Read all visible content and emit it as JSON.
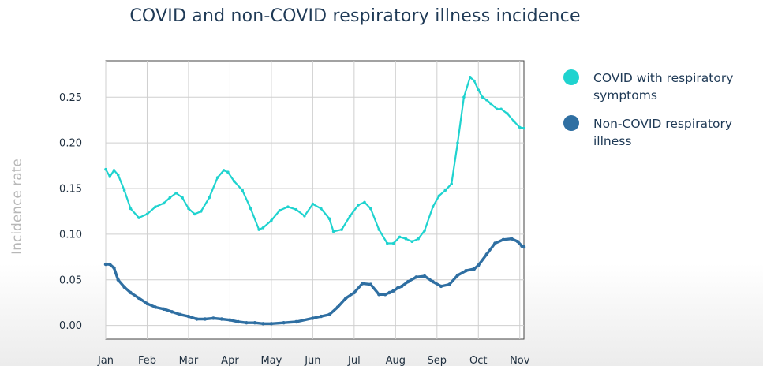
{
  "chart_data": {
    "type": "line",
    "title": "COVID and non-COVID respiratory illness incidence",
    "xlabel": "",
    "ylabel": "Incidence rate",
    "x_tick_labels": [
      "Jan",
      "Feb",
      "Mar",
      "Apr",
      "May",
      "Jun",
      "Jul",
      "Aug",
      "Sep",
      "Oct",
      "Nov"
    ],
    "y_tick_labels": [
      "0.00",
      "0.05",
      "0.10",
      "0.15",
      "0.20",
      "0.25"
    ],
    "y_ticks": [
      0,
      0.05,
      0.1,
      0.15,
      0.2,
      0.25
    ],
    "ylim": [
      -0.015,
      0.29
    ],
    "xlim": [
      0,
      10.1
    ],
    "grid": true,
    "legend_position": "right",
    "series": [
      {
        "name": "COVID with respiratory symptoms",
        "color": "#1fd3cf",
        "x": [
          0,
          0.1,
          0.2,
          0.3,
          0.45,
          0.6,
          0.8,
          1.0,
          1.2,
          1.4,
          1.55,
          1.7,
          1.85,
          2.0,
          2.15,
          2.3,
          2.5,
          2.7,
          2.85,
          2.95,
          3.1,
          3.3,
          3.5,
          3.7,
          3.8,
          4.0,
          4.2,
          4.4,
          4.6,
          4.8,
          5.0,
          5.2,
          5.4,
          5.5,
          5.7,
          5.9,
          6.1,
          6.25,
          6.4,
          6.6,
          6.8,
          6.95,
          7.1,
          7.25,
          7.4,
          7.55,
          7.7,
          7.9,
          8.05,
          8.2,
          8.35,
          8.5,
          8.65,
          8.8,
          8.9,
          9.0,
          9.1,
          9.2,
          9.3,
          9.45,
          9.55,
          9.7,
          9.85,
          10.0,
          10.1
        ],
        "values": [
          0.171,
          0.163,
          0.17,
          0.165,
          0.148,
          0.128,
          0.118,
          0.122,
          0.13,
          0.134,
          0.14,
          0.145,
          0.14,
          0.128,
          0.122,
          0.125,
          0.14,
          0.162,
          0.17,
          0.168,
          0.158,
          0.148,
          0.128,
          0.105,
          0.107,
          0.115,
          0.126,
          0.13,
          0.127,
          0.12,
          0.133,
          0.128,
          0.117,
          0.103,
          0.105,
          0.12,
          0.132,
          0.135,
          0.128,
          0.105,
          0.09,
          0.09,
          0.097,
          0.095,
          0.092,
          0.095,
          0.104,
          0.13,
          0.142,
          0.148,
          0.155,
          0.2,
          0.25,
          0.272,
          0.268,
          0.258,
          0.25,
          0.247,
          0.243,
          0.237,
          0.237,
          0.232,
          0.224,
          0.217,
          0.216
        ]
      },
      {
        "name": "Non-COVID respiratory illness",
        "color": "#2f6fa2",
        "x": [
          0,
          0.1,
          0.2,
          0.3,
          0.45,
          0.6,
          0.8,
          1.0,
          1.2,
          1.4,
          1.6,
          1.8,
          2.0,
          2.2,
          2.4,
          2.6,
          2.8,
          3.0,
          3.2,
          3.4,
          3.6,
          3.8,
          4.0,
          4.3,
          4.6,
          5.0,
          5.2,
          5.4,
          5.6,
          5.8,
          6.0,
          6.2,
          6.4,
          6.6,
          6.75,
          6.85,
          6.95,
          7.05,
          7.15,
          7.3,
          7.5,
          7.7,
          7.9,
          8.1,
          8.3,
          8.5,
          8.7,
          8.9,
          9.0,
          9.2,
          9.4,
          9.6,
          9.8,
          9.95,
          10.05,
          10.1
        ],
        "values": [
          0.067,
          0.067,
          0.063,
          0.05,
          0.042,
          0.036,
          0.03,
          0.024,
          0.02,
          0.018,
          0.015,
          0.012,
          0.01,
          0.007,
          0.007,
          0.008,
          0.007,
          0.006,
          0.004,
          0.003,
          0.003,
          0.002,
          0.002,
          0.003,
          0.004,
          0.008,
          0.01,
          0.012,
          0.02,
          0.03,
          0.036,
          0.046,
          0.045,
          0.034,
          0.034,
          0.036,
          0.038,
          0.041,
          0.043,
          0.048,
          0.053,
          0.054,
          0.048,
          0.043,
          0.045,
          0.055,
          0.06,
          0.062,
          0.066,
          0.078,
          0.09,
          0.094,
          0.095,
          0.092,
          0.087,
          0.086
        ]
      }
    ]
  }
}
